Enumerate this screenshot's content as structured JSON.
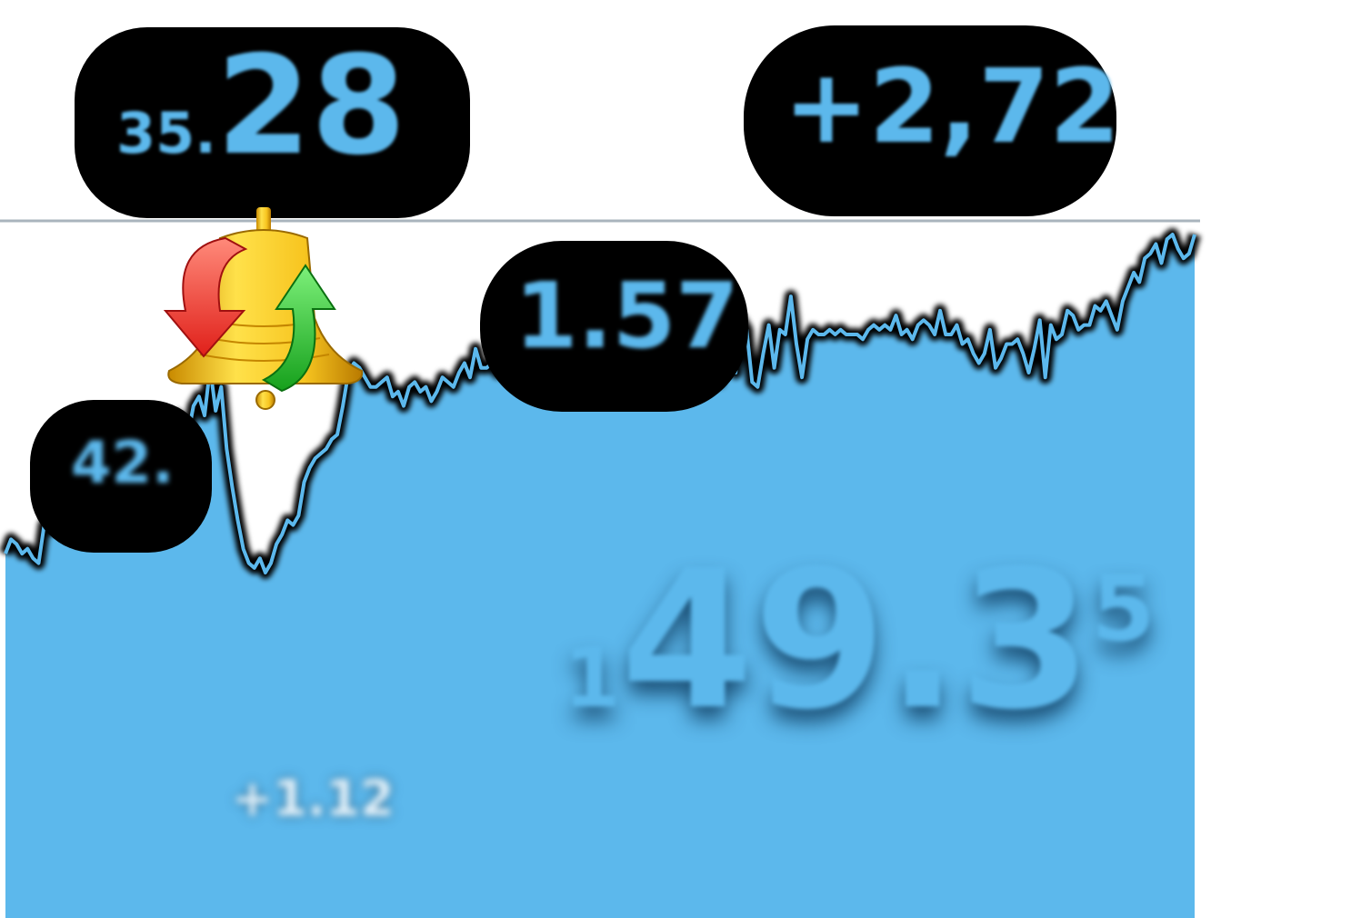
{
  "chart_data": {
    "type": "area",
    "title": "",
    "xlabel": "",
    "ylabel": "",
    "grid": false,
    "colors": {
      "line": "#5cb8ec",
      "fill": "#5cb8ec",
      "outline": "#000000",
      "baseline": "#a9b4bd"
    },
    "ylim": [
      0,
      100
    ],
    "y": [
      33,
      36,
      35,
      33,
      34,
      32,
      31,
      39,
      38,
      43,
      41,
      37,
      39,
      36,
      40,
      44,
      58,
      59,
      49,
      44,
      41,
      39,
      40,
      39,
      40,
      40,
      41,
      39,
      44,
      43,
      58,
      62,
      57,
      58,
      64,
      66,
      62,
      72,
      63,
      68,
      55,
      47,
      40,
      34,
      31,
      30,
      32,
      29,
      31,
      35,
      37,
      40,
      39,
      41,
      48,
      51,
      53,
      54,
      55,
      57,
      58,
      64,
      71,
      73,
      72,
      70,
      68,
      68,
      69,
      70,
      66,
      67,
      64,
      68,
      69,
      67,
      68,
      65,
      67,
      70,
      69,
      68,
      71,
      73,
      70,
      76,
      72,
      72,
      73,
      71,
      72,
      70,
      72,
      71,
      68,
      71,
      72,
      74,
      75,
      74,
      72,
      73,
      75,
      71,
      74,
      73,
      72,
      71,
      75,
      72,
      70,
      74,
      75,
      72,
      72,
      71,
      74,
      75,
      73,
      73,
      71,
      71,
      72,
      79,
      77,
      69,
      78,
      79,
      81,
      69,
      79,
      83,
      71,
      82,
      80,
      69,
      68,
      75,
      81,
      72,
      80,
      79,
      87,
      77,
      70,
      78,
      80,
      79,
      79,
      80,
      79,
      80,
      79,
      79,
      79,
      78,
      80,
      81,
      80,
      81,
      80,
      83,
      79,
      80,
      78,
      81,
      82,
      81,
      79,
      84,
      79,
      79,
      81,
      77,
      78,
      75,
      73,
      75,
      80,
      72,
      74,
      77,
      77,
      78,
      75,
      71,
      76,
      82,
      70,
      81,
      78,
      79,
      84,
      83,
      80,
      81,
      81,
      85,
      84,
      86,
      83,
      80,
      86,
      89,
      92,
      90,
      95,
      96,
      98,
      94,
      99,
      100,
      97,
      95,
      96,
      100
    ]
  },
  "labels": {
    "top_left": {
      "main": "28",
      "prefix": "35."
    },
    "top_right": "+2,72",
    "mid": "1.57",
    "left": "42.",
    "bottom_small": "+1.12",
    "big": {
      "main": "49.3",
      "prefix": "1",
      "sup": "5"
    }
  },
  "icon": "bell-sync-icon"
}
